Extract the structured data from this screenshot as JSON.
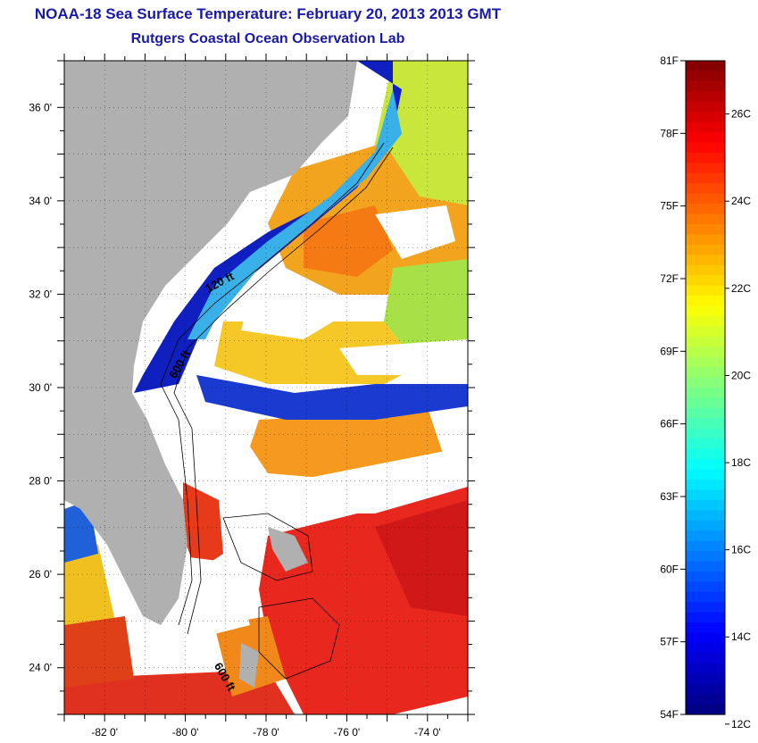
{
  "title": "NOAA-18 Sea Surface Temperature:  February 20, 2013 2013 GMT",
  "subtitle": "Rutgers Coastal Ocean Observation Lab",
  "colors": {
    "land": "#b0b0b0",
    "title": "#1a1aa8",
    "cloud": "#ffffff"
  },
  "map": {
    "lon_range": [
      -83,
      -73
    ],
    "lat_range": [
      23,
      37
    ],
    "lon_ticks": [
      "-82 0'",
      "-80 0'",
      "-78 0'",
      "-76 0'",
      "-74 0'"
    ],
    "lat_ticks": [
      "36 0'",
      "34 0'",
      "32 0'",
      "30 0'",
      "28 0'",
      "26 0'",
      "24 0'"
    ],
    "contour_labels": [
      "120 ft",
      "600 ft",
      "600 ft"
    ],
    "grid": true
  },
  "colorbar": {
    "fahrenheit_labels": [
      "81F",
      "78F",
      "75F",
      "72F",
      "69F",
      "66F",
      "63F",
      "60F",
      "57F",
      "54F"
    ],
    "celsius_labels": [
      "26C",
      "24C",
      "22C",
      "20C",
      "18C",
      "16C",
      "14C",
      "12C"
    ],
    "colormap": "jet"
  }
}
